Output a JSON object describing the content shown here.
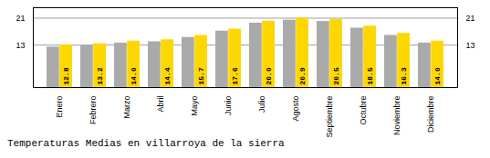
{
  "chart_data": {
    "type": "bar",
    "title": "Temperaturas Medias en villarroya de la sierra",
    "categories": [
      "Enero",
      "Febrero",
      "Marzo",
      "Abril",
      "Mayo",
      "Junio",
      "Julio",
      "Agosto",
      "Septiembre",
      "Octubre",
      "Noviembre",
      "Diciembre"
    ],
    "series": [
      {
        "color": "#AAAAAA",
        "values": [
          12.2,
          12.6,
          13.4,
          13.8,
          15.1,
          17.0,
          19.4,
          20.3,
          19.9,
          17.9,
          15.7,
          13.4
        ]
      },
      {
        "color": "#FFD700",
        "values": [
          12.8,
          13.2,
          14.0,
          14.4,
          15.7,
          17.6,
          20.0,
          20.9,
          20.5,
          18.5,
          16.3,
          14.0
        ],
        "data_labels": true,
        "value_labels": [
          "12.8",
          "13.2",
          "14.0",
          "14.4",
          "15.7",
          "17.6",
          "20.0",
          "20.9",
          "20.5",
          "18.5",
          "16.3",
          "14.0"
        ]
      }
    ],
    "ylim": [
      0,
      24.035
    ],
    "yticks": [
      12.8,
      20.9
    ],
    "grid": true
  }
}
